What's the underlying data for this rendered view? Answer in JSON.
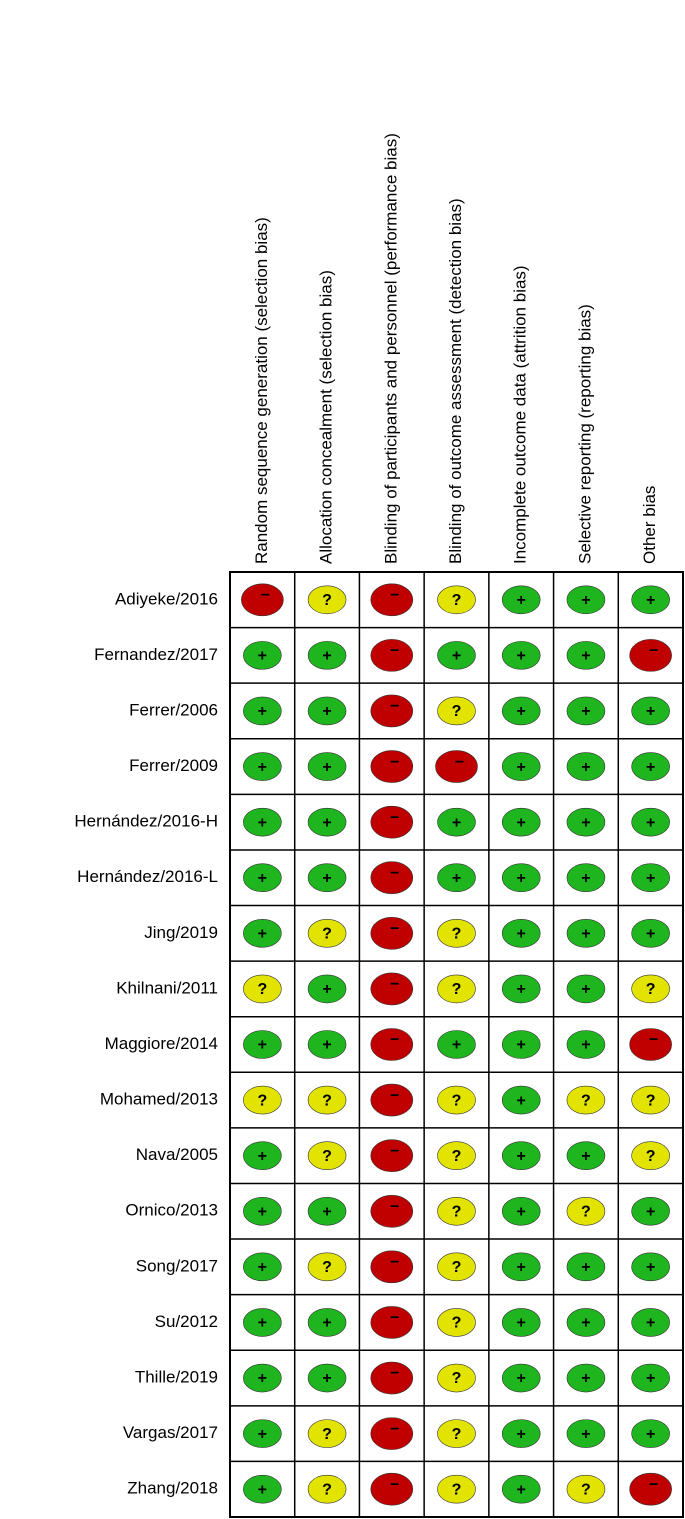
{
  "columns": [
    "Random sequence generation (selection bias)",
    "Allocation concealment (selection bias)",
    "Blinding of participants and personnel (performance bias)",
    "Blinding of outcome assessment (detection bias)",
    "Incomplete outcome data (attrition bias)",
    "Selective reporting (reporting bias)",
    "Other bias"
  ],
  "judgement_colors": {
    "+": "#1fb51f",
    "?": "#e3e300",
    "−": "#c00000"
  },
  "rows": [
    {
      "study": "Adiyeke/2016",
      "cells": [
        "−",
        "?",
        "−",
        "?",
        "+",
        "+",
        "+"
      ]
    },
    {
      "study": "Fernandez/2017",
      "cells": [
        "+",
        "+",
        "−",
        "+",
        "+",
        "+",
        "−"
      ]
    },
    {
      "study": "Ferrer/2006",
      "cells": [
        "+",
        "+",
        "−",
        "?",
        "+",
        "+",
        "+"
      ]
    },
    {
      "study": "Ferrer/2009",
      "cells": [
        "+",
        "+",
        "−",
        "−",
        "+",
        "+",
        "+"
      ]
    },
    {
      "study": "Hernández/2016-H",
      "cells": [
        "+",
        "+",
        "−",
        "+",
        "+",
        "+",
        "+"
      ]
    },
    {
      "study": "Hernández/2016-L",
      "cells": [
        "+",
        "+",
        "−",
        "+",
        "+",
        "+",
        "+"
      ]
    },
    {
      "study": "Jing/2019",
      "cells": [
        "+",
        "?",
        "−",
        "?",
        "+",
        "+",
        "+"
      ]
    },
    {
      "study": "Khilnani/2011",
      "cells": [
        "?",
        "+",
        "−",
        "?",
        "+",
        "+",
        "?"
      ]
    },
    {
      "study": "Maggiore/2014",
      "cells": [
        "+",
        "+",
        "−",
        "+",
        "+",
        "+",
        "−"
      ]
    },
    {
      "study": "Mohamed/2013",
      "cells": [
        "?",
        "?",
        "−",
        "?",
        "+",
        "?",
        "?"
      ]
    },
    {
      "study": "Nava/2005",
      "cells": [
        "+",
        "?",
        "−",
        "?",
        "+",
        "+",
        "?"
      ]
    },
    {
      "study": "Ornico/2013",
      "cells": [
        "+",
        "+",
        "−",
        "?",
        "+",
        "?",
        "+"
      ]
    },
    {
      "study": "Song/2017",
      "cells": [
        "+",
        "?",
        "−",
        "?",
        "+",
        "+",
        "+"
      ]
    },
    {
      "study": "Su/2012",
      "cells": [
        "+",
        "+",
        "−",
        "?",
        "+",
        "+",
        "+"
      ]
    },
    {
      "study": "Thille/2019",
      "cells": [
        "+",
        "+",
        "−",
        "?",
        "+",
        "+",
        "+"
      ]
    },
    {
      "study": "Vargas/2017",
      "cells": [
        "+",
        "?",
        "−",
        "?",
        "+",
        "+",
        "+"
      ]
    },
    {
      "study": "Zhang/2018",
      "cells": [
        "+",
        "?",
        "−",
        "?",
        "+",
        "?",
        "−"
      ]
    }
  ]
}
